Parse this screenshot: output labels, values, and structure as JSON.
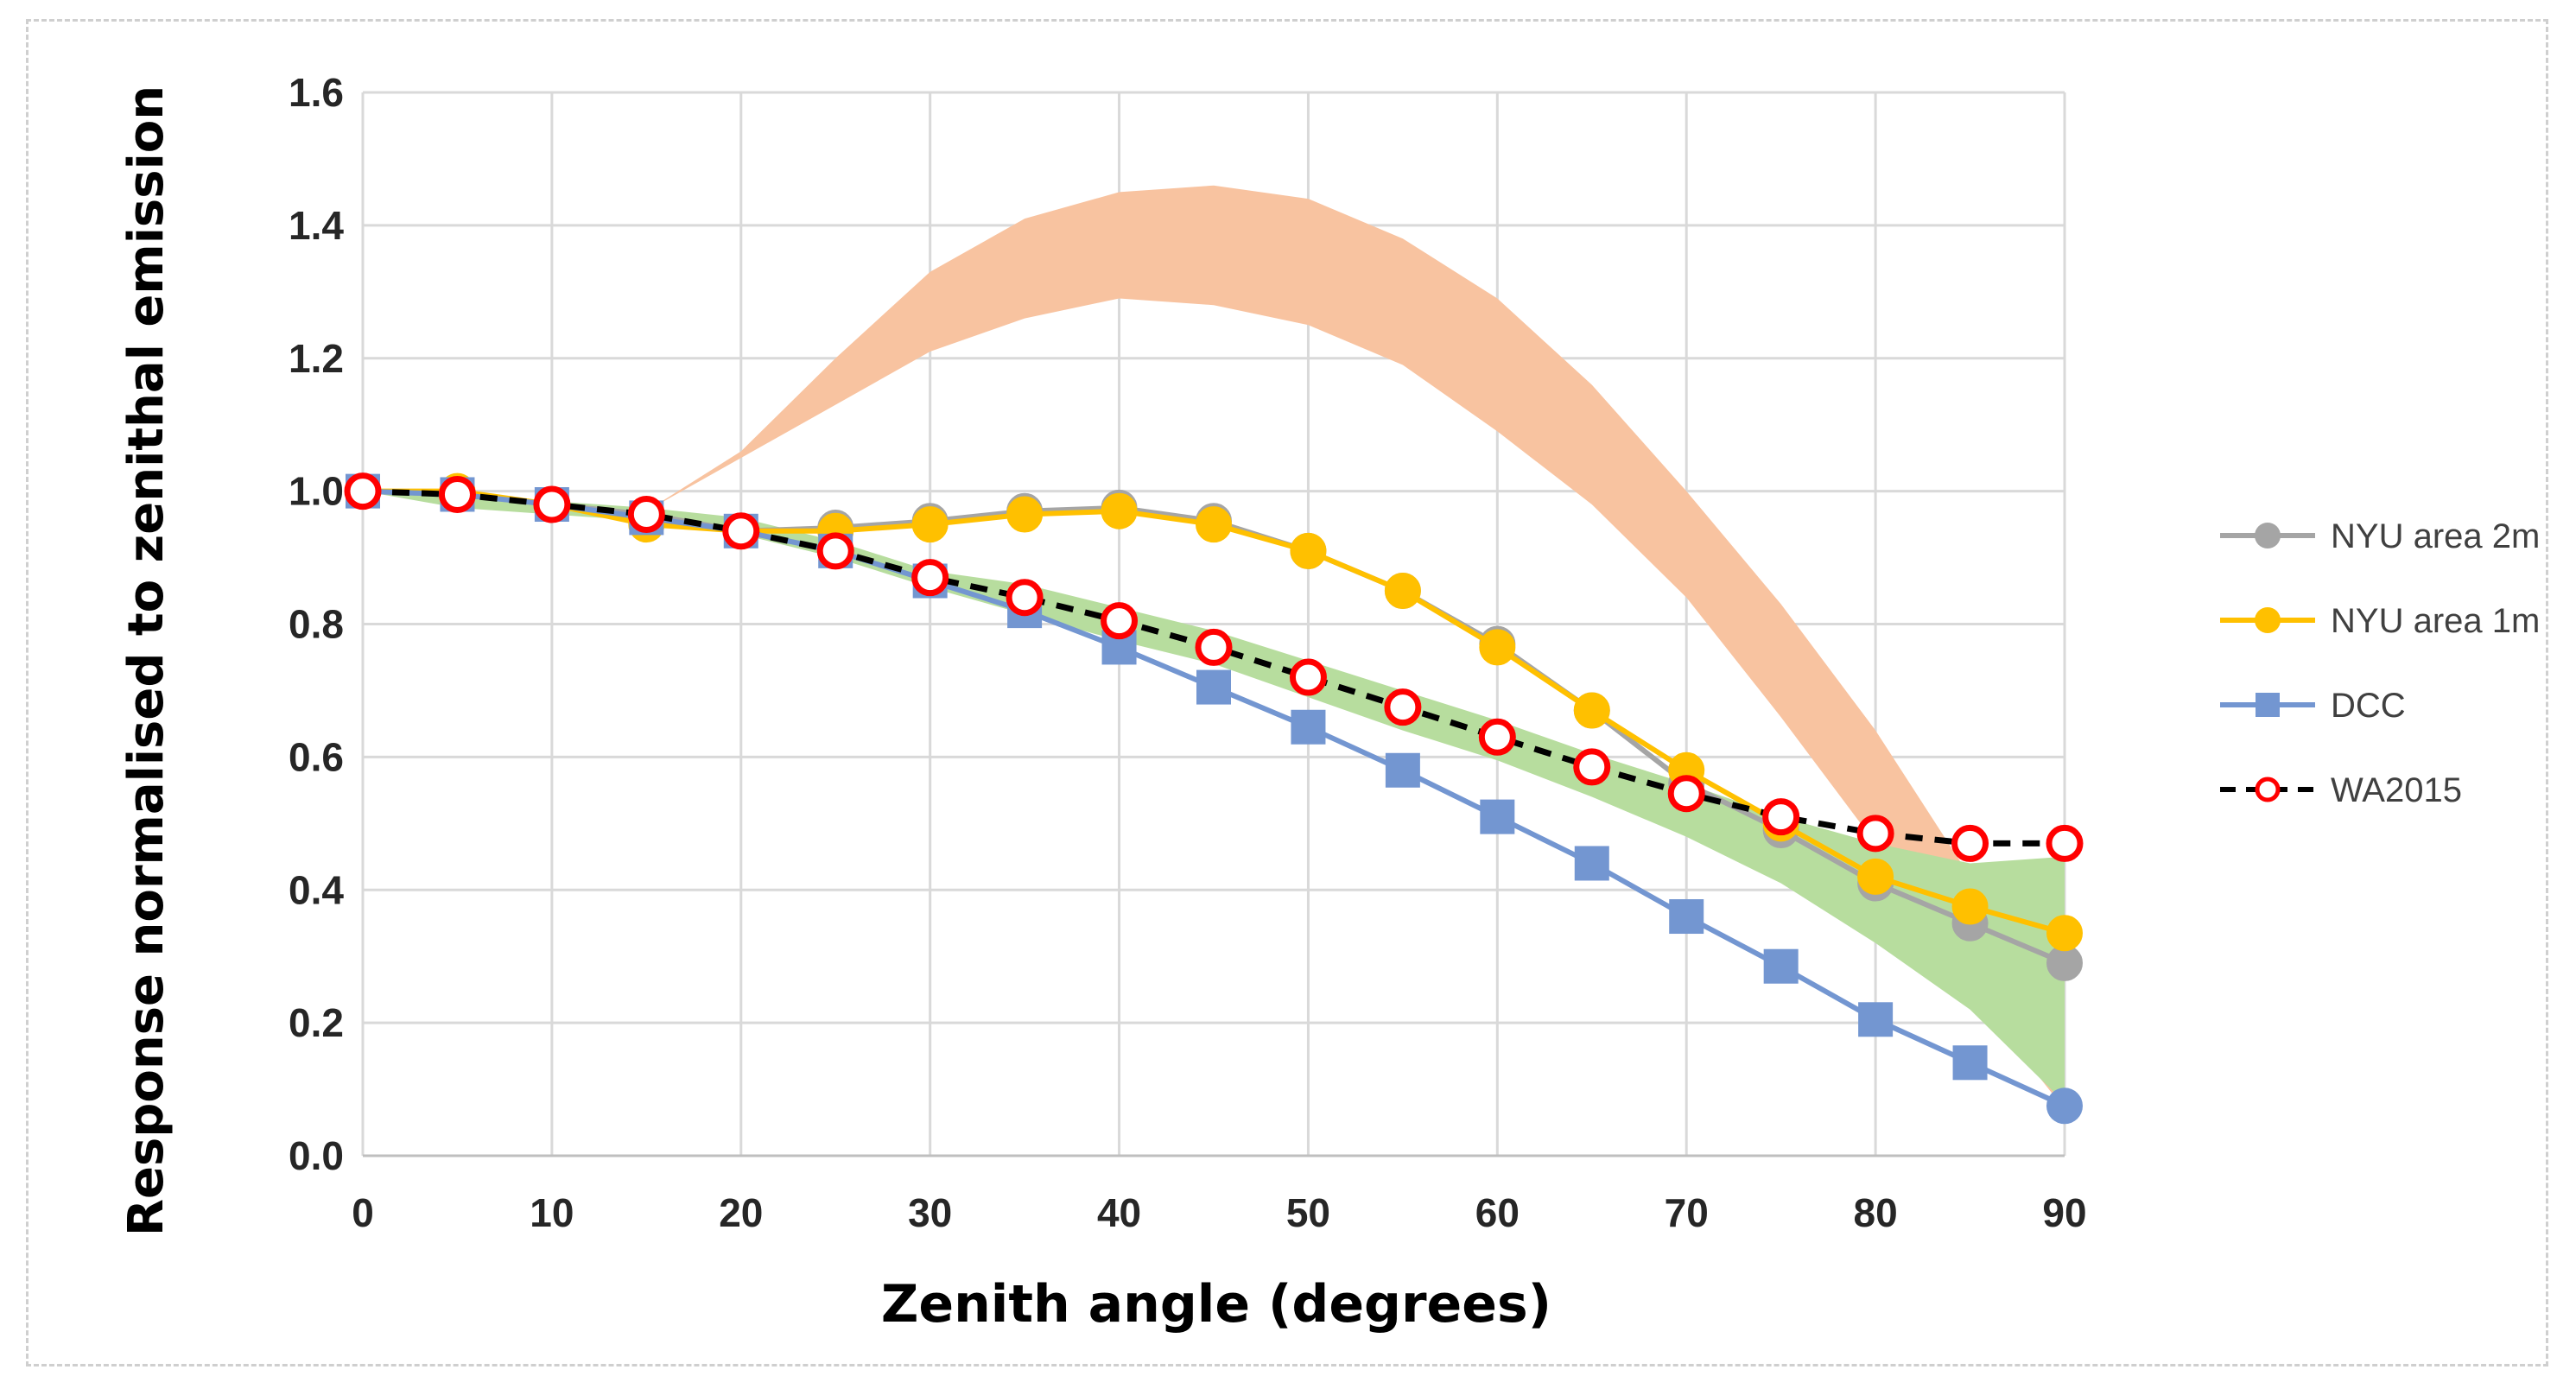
{
  "chart_data": {
    "type": "line",
    "title": "",
    "xlabel": "Zenith angle (degrees)",
    "ylabel": "Response normalised to zenithal emission",
    "x": [
      0,
      5,
      10,
      15,
      20,
      25,
      30,
      35,
      40,
      45,
      50,
      55,
      60,
      65,
      70,
      75,
      80,
      85,
      90
    ],
    "xlim": [
      0,
      90
    ],
    "ylim": [
      0,
      1.6
    ],
    "x_ticks": [
      "0",
      "10",
      "20",
      "30",
      "40",
      "50",
      "60",
      "70",
      "80",
      "90"
    ],
    "y_ticks": [
      "0.0",
      "0.2",
      "0.4",
      "0.6",
      "0.8",
      "1.0",
      "1.2",
      "1.4",
      "1.6"
    ],
    "grid": true,
    "legend_position": "right",
    "series": [
      {
        "name": "NYU area 2m",
        "color": "#a5a5a5",
        "marker": "circle",
        "line": "solid",
        "values": [
          1.0,
          0.995,
          0.98,
          0.965,
          0.94,
          0.945,
          0.955,
          0.97,
          0.975,
          0.955,
          0.91,
          0.85,
          0.77,
          0.67,
          0.56,
          0.49,
          0.41,
          0.35,
          0.29
        ]
      },
      {
        "name": "NYU area 1m",
        "color": "#ffc000",
        "marker": "circle",
        "line": "solid",
        "values": [
          1.0,
          1.0,
          0.98,
          0.95,
          0.94,
          0.94,
          0.95,
          0.965,
          0.97,
          0.95,
          0.91,
          0.85,
          0.765,
          0.67,
          0.58,
          0.5,
          0.42,
          0.375,
          0.335
        ]
      },
      {
        "name": "DCC",
        "color": "#7396d1",
        "marker": "square",
        "line": "solid",
        "values": [
          1.0,
          0.995,
          0.98,
          0.96,
          0.94,
          0.91,
          0.865,
          0.82,
          0.765,
          0.705,
          0.645,
          0.58,
          0.51,
          0.44,
          0.36,
          0.285,
          0.205,
          0.14,
          0.075
        ]
      },
      {
        "name": "WA2015",
        "color": "#000000",
        "marker_color": "#ff0000",
        "marker": "open-circle",
        "line": "dashed",
        "values": [
          1.0,
          0.995,
          0.98,
          0.965,
          0.94,
          0.91,
          0.87,
          0.84,
          0.805,
          0.765,
          0.72,
          0.675,
          0.63,
          0.585,
          0.545,
          0.51,
          0.485,
          0.47,
          0.47
        ]
      }
    ],
    "bands": [
      {
        "name": "orange-band",
        "color": "#f8c3a0",
        "x": [
          15,
          20,
          25,
          30,
          35,
          40,
          45,
          50,
          55,
          60,
          65,
          70,
          75,
          80,
          85,
          90
        ],
        "upper": [
          0.97,
          1.06,
          1.2,
          1.33,
          1.41,
          1.45,
          1.46,
          1.44,
          1.38,
          1.29,
          1.16,
          1.0,
          0.83,
          0.64,
          0.42,
          0.1
        ],
        "lower": [
          0.97,
          1.05,
          1.13,
          1.21,
          1.26,
          1.29,
          1.28,
          1.25,
          1.19,
          1.09,
          0.98,
          0.84,
          0.66,
          0.47,
          0.25,
          0.07
        ]
      },
      {
        "name": "green-band",
        "color": "#b7dd9e",
        "x": [
          0,
          5,
          10,
          15,
          20,
          25,
          30,
          35,
          40,
          45,
          50,
          55,
          60,
          65,
          70,
          75,
          80,
          85,
          90
        ],
        "upper": [
          1.0,
          0.995,
          0.985,
          0.975,
          0.96,
          0.925,
          0.88,
          0.86,
          0.825,
          0.79,
          0.745,
          0.7,
          0.655,
          0.605,
          0.56,
          0.51,
          0.47,
          0.44,
          0.45
        ],
        "lower": [
          1.0,
          0.975,
          0.965,
          0.955,
          0.935,
          0.9,
          0.855,
          0.815,
          0.775,
          0.74,
          0.69,
          0.64,
          0.595,
          0.54,
          0.48,
          0.41,
          0.32,
          0.22,
          0.08
        ]
      }
    ]
  }
}
